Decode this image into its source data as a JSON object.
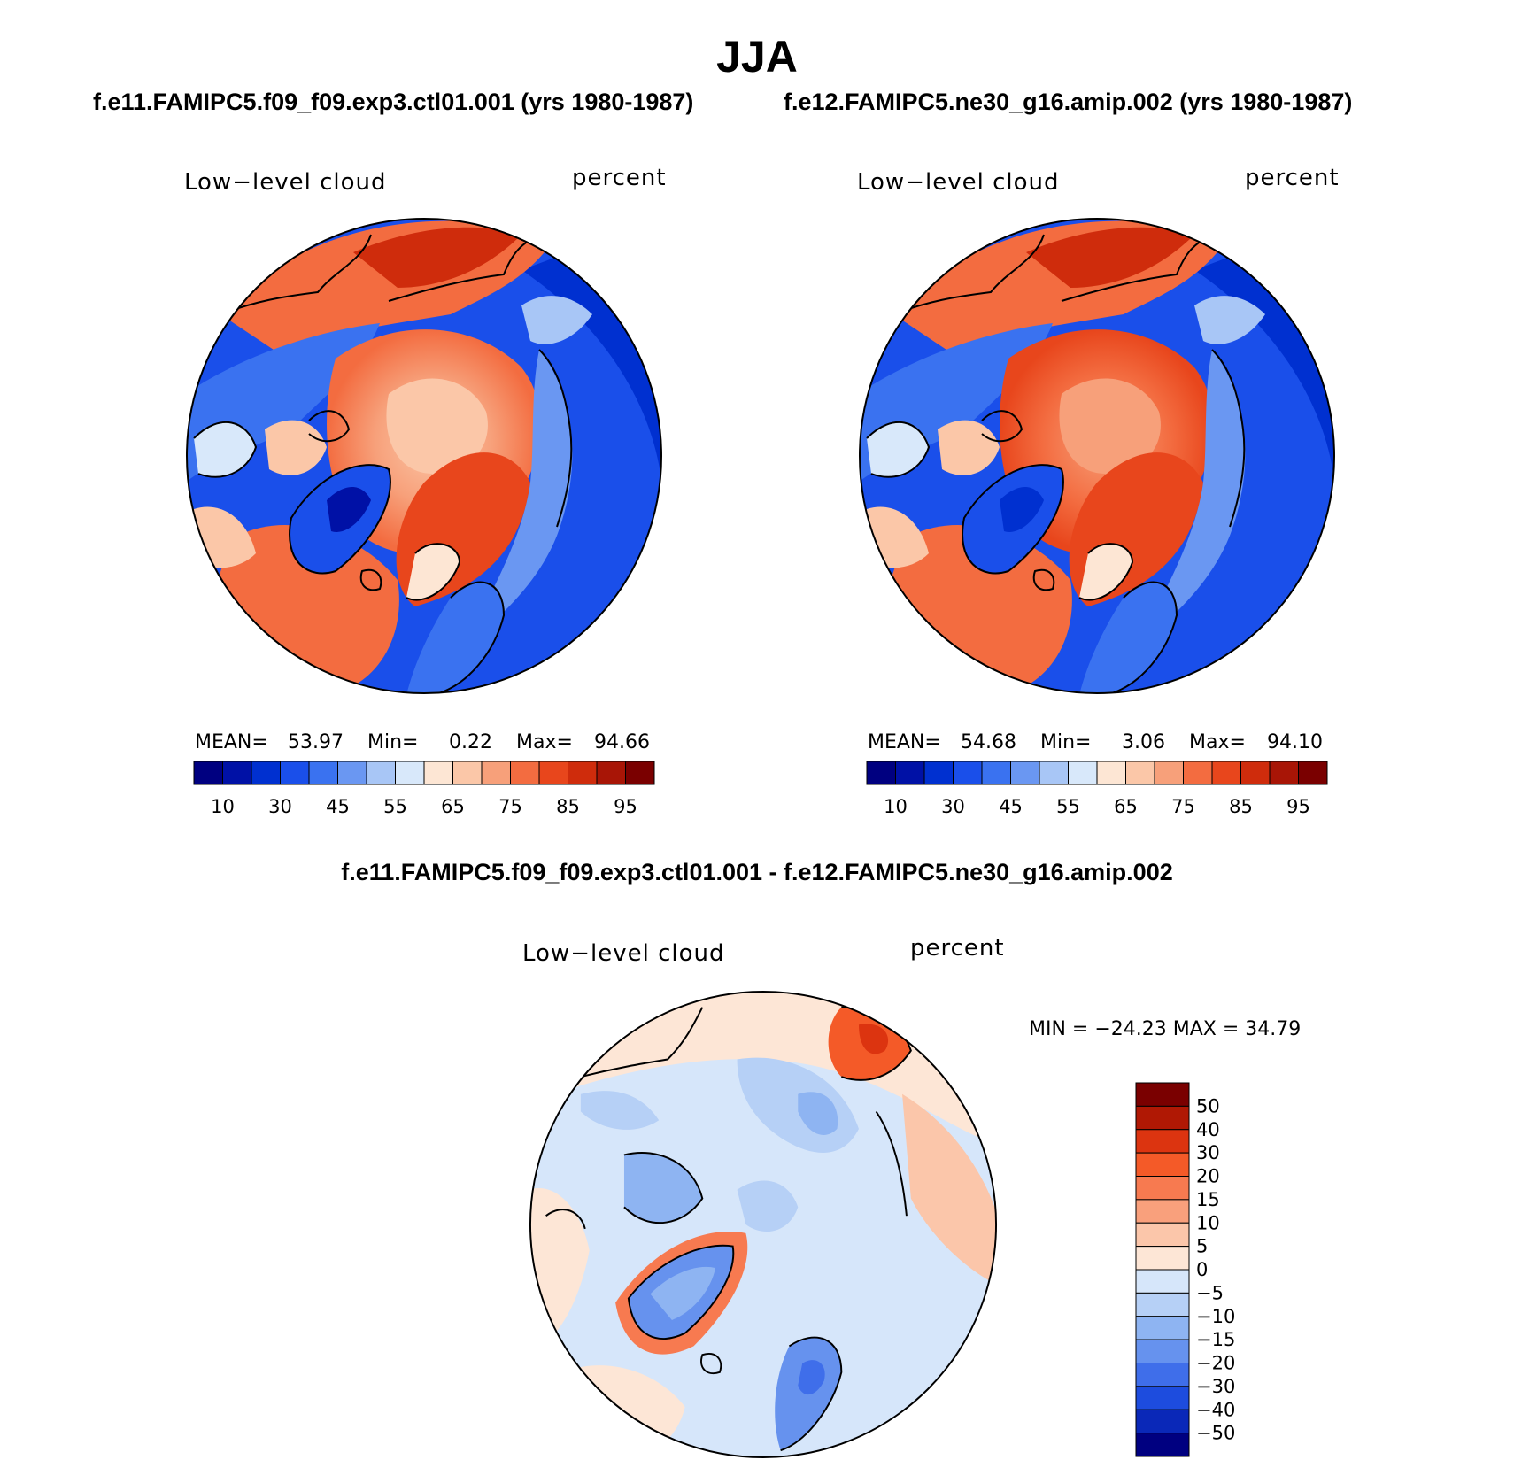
{
  "title": "JJA",
  "left_case_title": "f.e11.FAMIPC5.f09_f09.exp3.ctl01.001 (yrs 1980-1987)",
  "right_case_title": "f.e12.FAMIPC5.ne30_g16.amip.002 (yrs 1980-1987)",
  "diff_title": "f.e11.FAMIPC5.f09_f09.exp3.ctl01.001 - f.e12.FAMIPC5.ne30_g16.amip.002",
  "panels": {
    "left": {
      "variable": "Low−level cloud",
      "units": "percent",
      "mean_label": "MEAN=",
      "mean_value": "53.97",
      "min_label": "Min=",
      "min_value": "0.22",
      "max_label": "Max=",
      "max_value": "94.66"
    },
    "right": {
      "variable": "Low−level cloud",
      "units": "percent",
      "mean_label": "MEAN=",
      "mean_value": "54.68",
      "min_label": "Min=",
      "min_value": "3.06",
      "max_label": "Max=",
      "max_value": "94.10"
    },
    "diff": {
      "variable": "Low−level cloud",
      "units": "percent",
      "minmax_text": "MIN = −24.23 MAX =   34.79"
    }
  },
  "field_colorbar": {
    "colors": [
      "#000080",
      "#0011a6",
      "#0030d0",
      "#1a4fea",
      "#3a72f0",
      "#6a97f2",
      "#a8c6f6",
      "#d8e8fa",
      "#fde6d4",
      "#fbc7a8",
      "#f7a07a",
      "#f36c40",
      "#e8461c",
      "#cf2c0c",
      "#a81506",
      "#7a0000"
    ],
    "tick_labels": [
      "10",
      "30",
      "45",
      "55",
      "65",
      "75",
      "85",
      "95"
    ]
  },
  "diff_colorbar": {
    "colors": [
      "#7a0000",
      "#b01804",
      "#dc3410",
      "#f45a28",
      "#f77a50",
      "#f9a07c",
      "#fbc6aa",
      "#fde6d6",
      "#d6e6fa",
      "#b6d0f6",
      "#8eb4f2",
      "#6692ee",
      "#3f6eea",
      "#1d4cde",
      "#0a28b8",
      "#000080"
    ],
    "tick_labels": [
      "50",
      "40",
      "30",
      "20",
      "15",
      "10",
      "5",
      "0",
      "−5",
      "−10",
      "−15",
      "−20",
      "−30",
      "−40",
      "−50"
    ]
  },
  "colors": {
    "land_outline": "#000000",
    "ocean_low_cloud": "#1a4fea",
    "arctic_high_cloud": "#f7a07a"
  }
}
